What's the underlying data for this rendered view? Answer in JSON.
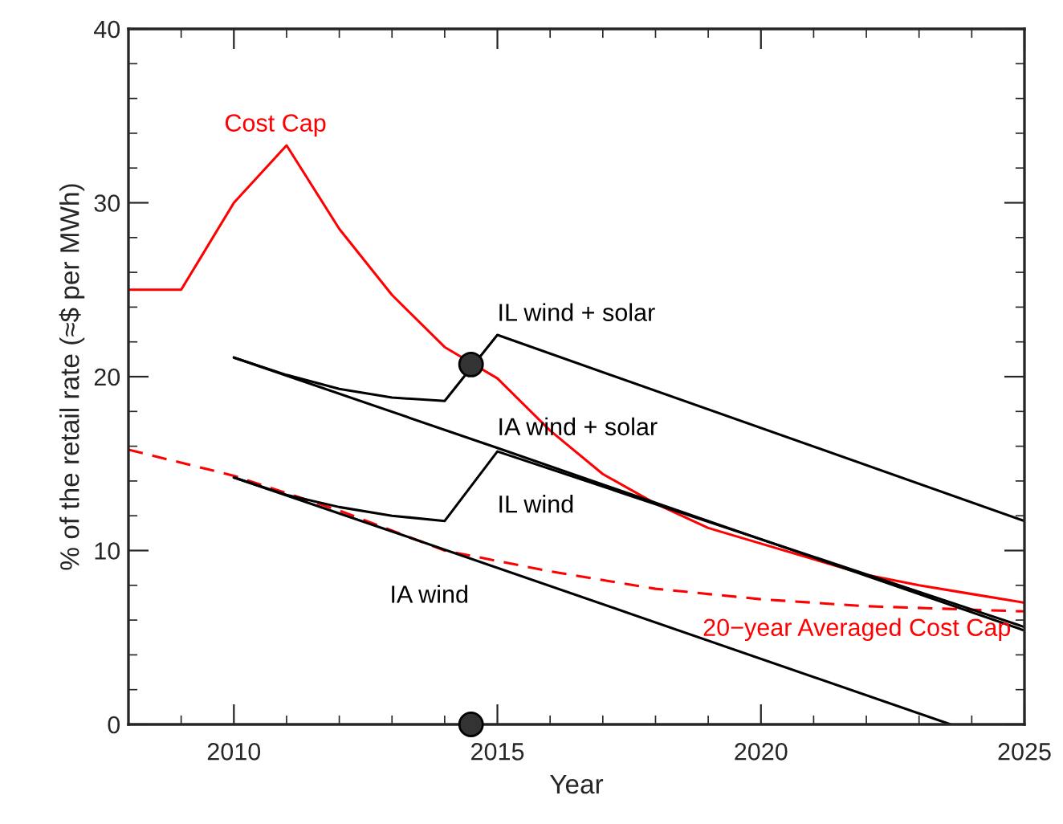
{
  "chart_data": {
    "type": "line",
    "xlabel": "Year",
    "ylabel": "% of the retail rate (≈$ per MWh)",
    "xlim": [
      2008,
      2025
    ],
    "ylim": [
      0,
      40
    ],
    "xticks": [
      2010,
      2015,
      2020,
      2025,
      {
        "value": 2008,
        "label": null
      },
      {
        "value": 2009,
        "label": null
      },
      {
        "value": 2011,
        "label": null
      },
      {
        "value": 2012,
        "label": null
      },
      {
        "value": 2013,
        "label": null
      },
      {
        "value": 2014,
        "label": null
      },
      {
        "value": 2016,
        "label": null
      },
      {
        "value": 2017,
        "label": null
      },
      {
        "value": 2018,
        "label": null
      },
      {
        "value": 2019,
        "label": null
      },
      {
        "value": 2021,
        "label": null
      },
      {
        "value": 2022,
        "label": null
      },
      {
        "value": 2023,
        "label": null
      },
      {
        "value": 2024,
        "label": null
      }
    ],
    "yticks": [
      0,
      10,
      20,
      30,
      40,
      {
        "value": 2,
        "label": null
      },
      {
        "value": 4,
        "label": null
      },
      {
        "value": 6,
        "label": null
      },
      {
        "value": 8,
        "label": null
      },
      {
        "value": 12,
        "label": null
      },
      {
        "value": 14,
        "label": null
      },
      {
        "value": 16,
        "label": null
      },
      {
        "value": 18,
        "label": null
      },
      {
        "value": 22,
        "label": null
      },
      {
        "value": 24,
        "label": null
      },
      {
        "value": 26,
        "label": null
      },
      {
        "value": 28,
        "label": null
      },
      {
        "value": 32,
        "label": null
      },
      {
        "value": 34,
        "label": null
      },
      {
        "value": 36,
        "label": null
      },
      {
        "value": 38,
        "label": null
      }
    ],
    "grid": false,
    "legend": false,
    "marker": "none",
    "series": [
      {
        "name": "Cost Cap",
        "color": "#ff0000",
        "x": [
          2008,
          2009,
          2010,
          2011,
          2012,
          2013,
          2014,
          2015,
          2016,
          2017,
          2018,
          2019,
          2020,
          2021,
          2022,
          2023,
          2024,
          2025
        ],
        "values": [
          25,
          25,
          30,
          33.3,
          28.5,
          24.7,
          21.7,
          19.9,
          16.9,
          14.4,
          12.7,
          11.3,
          10.4,
          9.5,
          8.6,
          8.0,
          7.5,
          7.0
        ]
      },
      {
        "name": "20−year Averaged Cost Cap",
        "color": "#ff0000",
        "line_style": "dashed",
        "x": [
          2008,
          2010,
          2012,
          2014,
          2016,
          2018,
          2020,
          2022,
          2025
        ],
        "values": [
          15.8,
          14.3,
          12.3,
          10.0,
          8.8,
          7.8,
          7.2,
          6.8,
          6.5
        ]
      },
      {
        "name": "IL wind + solar",
        "color": "#000000",
        "x": [
          2010,
          2011,
          2012,
          2013,
          2014,
          2015,
          2025
        ],
        "values": [
          21.1,
          20.1,
          19.3,
          18.8,
          18.6,
          22.4,
          11.7
        ]
      },
      {
        "name": "IA wind + solar",
        "color": "#000000",
        "x": [
          2010,
          2011,
          2012,
          2013,
          2014,
          2015,
          2025
        ],
        "values": [
          14.2,
          13.2,
          12.5,
          12.0,
          11.7,
          15.7,
          5.6
        ]
      },
      {
        "name": "IL wind",
        "color": "#000000",
        "x": [
          2010,
          2015,
          2025
        ],
        "values": [
          21.1,
          15.9,
          5.4
        ]
      },
      {
        "name": "IA wind",
        "color": "#000000",
        "x": [
          2010,
          2013,
          2023.6
        ],
        "values": [
          14.2,
          11.1,
          0
        ]
      },
      {
        "type": "scatter",
        "color": "#333333",
        "marker": "circle",
        "x": [
          2014.5,
          2014.5
        ],
        "values": [
          20.7,
          0
        ]
      }
    ]
  }
}
